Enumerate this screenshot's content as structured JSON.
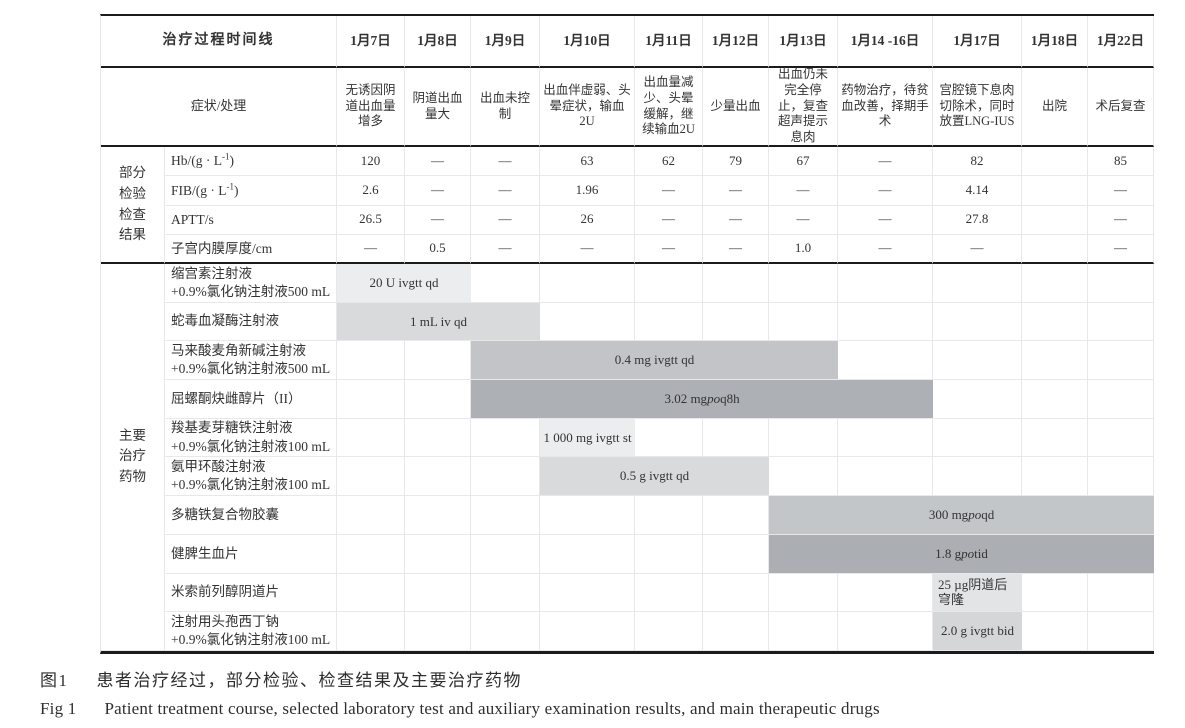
{
  "table": {
    "timeline_header": "治疗过程时间线",
    "symptom_header": "症状/处理",
    "dates": [
      "1月7日",
      "1月8日",
      "1月9日",
      "1月10日",
      "1月11日",
      "1月12日",
      "1月13日",
      "1月14 -16日",
      "1月17日",
      "1月18日",
      "1月22日"
    ],
    "symptoms": [
      "无诱因阴道出血量增多",
      "阴道出血量大",
      "出血未控制",
      "出血伴虚弱、头晕症状，输血2U",
      "出血量减少、头晕缓解，继续输血2U",
      "少量出血",
      "出血仍未完全停止，复查超声提示息肉",
      "药物治疗，待贫血改善，择期手术",
      "宫腔镜下息肉切除术，同时放置LNG-IUS",
      "出院",
      "术后复查"
    ],
    "lab_group_lines": [
      "部分",
      "检验",
      "检查",
      "结果"
    ],
    "lab_rows": [
      {
        "label_pre": "Hb/(g · L",
        "label_sup": "-1",
        "label_post": ")",
        "values": [
          "120",
          "—",
          "—",
          "63",
          "62",
          "79",
          "67",
          "—",
          "82",
          "",
          "85"
        ]
      },
      {
        "label_pre": "FIB/(g · L",
        "label_sup": "-1",
        "label_post": ")",
        "values": [
          "2.6",
          "—",
          "—",
          "1.96",
          "—",
          "—",
          "—",
          "—",
          "4.14",
          "",
          "—"
        ]
      },
      {
        "label_pre": "APTT/s",
        "label_sup": "",
        "label_post": "",
        "values": [
          "26.5",
          "—",
          "—",
          "26",
          "—",
          "—",
          "—",
          "—",
          "27.8",
          "",
          "—"
        ]
      },
      {
        "label_pre": "子宫内膜厚度/cm",
        "label_sup": "",
        "label_post": "",
        "values": [
          "—",
          "0.5",
          "—",
          "—",
          "—",
          "—",
          "1.0",
          "—",
          "—",
          "",
          "—"
        ]
      }
    ],
    "drug_group_lines": [
      "主要",
      "治疗",
      "药物"
    ],
    "drug_rows": [
      {
        "label_lines": [
          "缩宫素注射液",
          "+0.9%氯化钠注射液500 mL"
        ],
        "bar": {
          "start": 0,
          "span": 2,
          "color": "#ebedee",
          "text_parts": [
            {
              "t": "20 U ivgtt qd"
            }
          ]
        }
      },
      {
        "label_lines": [
          "蛇毒血凝酶注射液"
        ],
        "bar": {
          "start": 0,
          "span": 3,
          "color": "#d8dadc",
          "text_parts": [
            {
              "t": "1 mL iv qd"
            }
          ]
        }
      },
      {
        "label_lines": [
          "马来酸麦角新碱注射液",
          "+0.9%氯化钠注射液500 mL"
        ],
        "bar": {
          "start": 2,
          "span": 5,
          "color": "#c2c4c7",
          "text_parts": [
            {
              "t": "0.4 mg ivgtt qd"
            }
          ]
        }
      },
      {
        "label_lines": [
          "屈螺酮炔雌醇片（II）"
        ],
        "bar": {
          "start": 2,
          "span": 6,
          "color": "#adb0b4",
          "text_parts": [
            {
              "t": "3.02 mg "
            },
            {
              "t": "po",
              "i": true
            },
            {
              "t": " q8h"
            }
          ]
        }
      },
      {
        "label_lines": [
          "羧基麦芽糖铁注射液",
          "+0.9%氯化钠注射液100 mL"
        ],
        "bar": {
          "start": 3,
          "span": 1,
          "color": "#ebedee",
          "text_parts": [
            {
              "t": "1 000 mg ivgtt st"
            }
          ]
        }
      },
      {
        "label_lines": [
          "氨甲环酸注射液",
          "+0.9%氯化钠注射液100 mL"
        ],
        "bar": {
          "start": 3,
          "span": 3,
          "color": "#d8dadc",
          "text_parts": [
            {
              "t": "0.5 g ivgtt qd"
            }
          ]
        }
      },
      {
        "label_lines": [
          "多糖铁复合物胶囊"
        ],
        "bar": {
          "start": 6,
          "span": 5,
          "color": "#c3c6c9",
          "text_parts": [
            {
              "t": "300 mg "
            },
            {
              "t": "po",
              "i": true
            },
            {
              "t": " qd"
            }
          ]
        }
      },
      {
        "label_lines": [
          "健脾生血片"
        ],
        "bar": {
          "start": 6,
          "span": 5,
          "color": "#abaeb2",
          "text_parts": [
            {
              "t": "1.8 g "
            },
            {
              "t": "po",
              "i": true
            },
            {
              "t": " tid"
            }
          ]
        }
      },
      {
        "label_lines": [
          "米索前列醇阴道片"
        ],
        "bar": {
          "start": 8,
          "span": 1,
          "color": "#e3e4e6",
          "wrap": true,
          "text_parts": [
            {
              "t": "25 µg阴道后穹隆"
            }
          ]
        }
      },
      {
        "label_lines": [
          "注射用头孢西丁钠",
          "+0.9%氯化钠注射液100 mL"
        ],
        "bar": {
          "start": 8,
          "span": 1,
          "color": "#d4d6d8",
          "text_parts": [
            {
              "t": "2.0 g ivgtt bid"
            }
          ]
        }
      }
    ]
  },
  "caption": {
    "zh_label": "图1",
    "zh_text": "患者治疗经过，部分检验、检查结果及主要治疗药物",
    "en_label": "Fig 1",
    "en_text": "Patient treatment course, selected laboratory test and auxiliary examination results, and main therapeutic drugs"
  }
}
